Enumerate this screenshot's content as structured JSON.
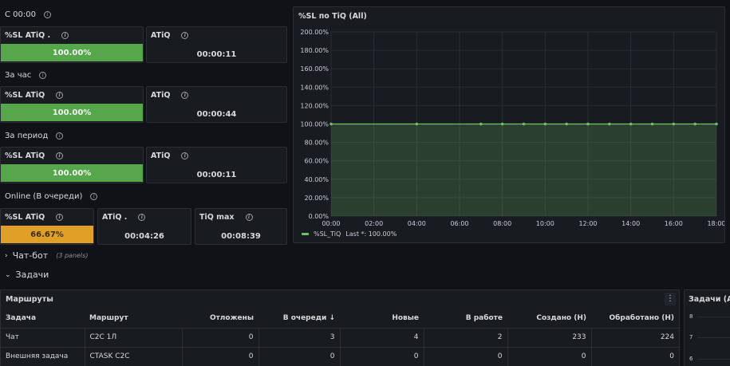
{
  "rows": {
    "since": "С 00:00",
    "hour": "За час",
    "period": "За период",
    "online": "Online (В очереди)"
  },
  "stats": {
    "since_sl_title": "%SL ATiQ .",
    "since_sl_value": "100.00%",
    "since_atiq_title": "ATiQ",
    "since_atiq_value": "00:00:11",
    "hour_sl_title": "%SL ATiQ",
    "hour_sl_value": "100.00%",
    "hour_atiq_title": "ATiQ",
    "hour_atiq_value": "00:00:44",
    "period_sl_title": "%SL ATiQ",
    "period_sl_value": "100.00%",
    "period_atiq_title": "ATiQ",
    "period_atiq_value": "00:00:11",
    "online_sl_title": "%SL ATiQ",
    "online_sl_value": "66.67%",
    "online_sl_fill": 0.6667,
    "online_atiq_title": "ATiQ .",
    "online_atiq_value": "00:04:26",
    "online_tiqmax_title": "TiQ max",
    "online_tiqmax_value": "00:08:39"
  },
  "colors": {
    "green": "#56a64b",
    "orange": "#e0a028",
    "line": "#73bf69"
  },
  "chart_panel": {
    "title": "%SL по TiQ (All)",
    "legend_label": "%SL_TiQ",
    "legend_last": "Last *: 100.00%"
  },
  "chart_data": {
    "type": "area",
    "title": "%SL по TiQ (All)",
    "ylim": [
      0,
      200
    ],
    "y_ticks": [
      "200.00%",
      "180.00%",
      "160.00%",
      "140.00%",
      "120.00%",
      "100.00%",
      "80.00%",
      "60.00%",
      "40.00%",
      "20.00%",
      "0.00%"
    ],
    "x_ticks": [
      "00:00",
      "02:00",
      "04:00",
      "06:00",
      "08:00",
      "10:00",
      "12:00",
      "14:00",
      "16:00",
      "18:00"
    ],
    "xlim": [
      0,
      18
    ],
    "grid": true,
    "legend": "bottom-left",
    "series": [
      {
        "name": "%SL_TiQ",
        "x": [
          0,
          4,
          7,
          8,
          9,
          10,
          11,
          12,
          13,
          14,
          15,
          16,
          17,
          18
        ],
        "values": [
          100,
          100,
          100,
          100,
          100,
          100,
          100,
          100,
          100,
          100,
          100,
          100,
          100,
          100
        ]
      }
    ]
  },
  "sections": {
    "chatbot": "Чат-бот",
    "chatbot_sub": "(3 panels)",
    "tasks": "Задачи"
  },
  "routes": {
    "title": "Маршруты",
    "menu": "⋮",
    "columns": [
      "Задача",
      "Маршрут",
      "Отложены",
      "В очереди",
      "Новые",
      "В работе",
      "Создано (Н)",
      "Обработано (Н)"
    ],
    "sort_arrow": "↓",
    "rows": [
      [
        "Чат",
        "C2C 1Л",
        "0",
        "3",
        "4",
        "2",
        "233",
        "224"
      ],
      [
        "Внешняя задача",
        "CTASK C2C",
        "0",
        "0",
        "0",
        "0",
        "0",
        "0"
      ]
    ]
  },
  "tasks_panel": {
    "title": "Задачи (All",
    "y_ticks": [
      "8",
      "7",
      "6"
    ]
  }
}
